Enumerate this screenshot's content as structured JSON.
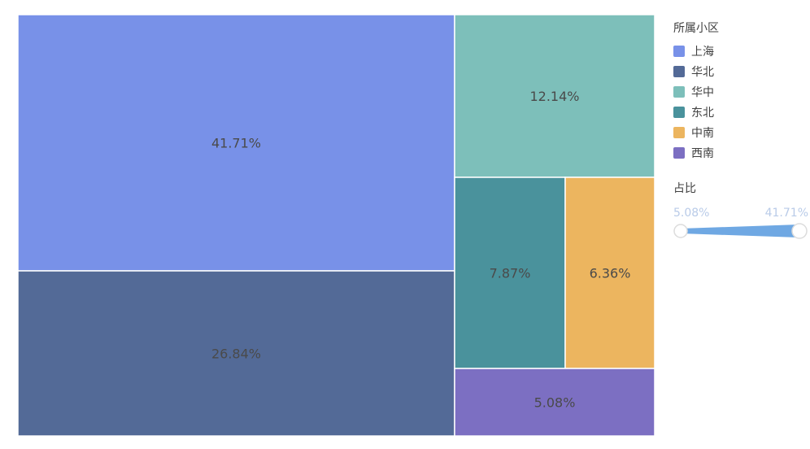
{
  "chart_data": {
    "type": "treemap",
    "legend_title": "所属小区",
    "legend_placement": "top-right",
    "items": [
      {
        "name": "上海",
        "value": 41.71,
        "label": "41.71%",
        "color": "#7891e8"
      },
      {
        "name": "华北",
        "value": 26.84,
        "label": "26.84%",
        "color": "#536a97"
      },
      {
        "name": "华中",
        "value": 12.14,
        "label": "12.14%",
        "color": "#7dbfba"
      },
      {
        "name": "东北",
        "value": 7.87,
        "label": "7.87%",
        "color": "#4a929c"
      },
      {
        "name": "中南",
        "value": 6.36,
        "label": "6.36%",
        "color": "#ecb55f"
      },
      {
        "name": "西南",
        "value": 5.08,
        "label": "5.08%",
        "color": "#7c6fc2"
      }
    ],
    "range": {
      "title": "占比",
      "min_label": "5.08%",
      "max_label": "41.71%",
      "min": 5.08,
      "max": 41.71,
      "color": "#6fa8e3"
    }
  }
}
